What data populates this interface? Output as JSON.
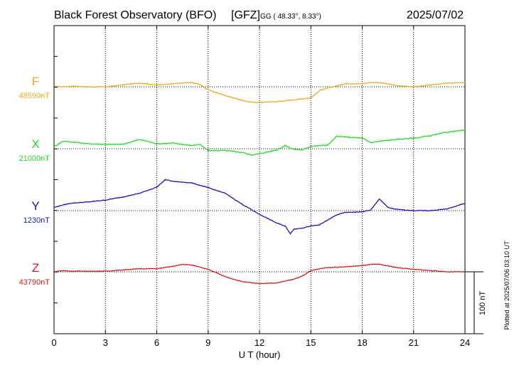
{
  "header": {
    "title": "Black Forest Observatory (BFO)",
    "org": "[GFZ]",
    "coords": "GG ( 48.33°,   8.33°)",
    "date": "2025/07/02"
  },
  "footer": {
    "plotted": "Plotted at 2025/07/06 03:10 UT"
  },
  "chart_data": {
    "type": "line",
    "xlabel": "U T (hour)",
    "xlim": [
      0,
      24
    ],
    "xticks": [
      0,
      3,
      6,
      9,
      12,
      15,
      18,
      21,
      24
    ],
    "scale_bar": {
      "label": "100 nT",
      "value_nT": 100
    },
    "grid": true,
    "series": [
      {
        "name": "F",
        "baseline_label": "48590nT",
        "baseline_nT": 48590,
        "color": "#f0a818",
        "x": [
          0,
          0.5,
          1,
          2,
          3,
          4,
          5,
          6,
          7,
          8,
          8.5,
          9,
          10,
          11,
          11.5,
          12,
          13,
          14,
          15,
          15.5,
          16,
          17,
          18,
          18.5,
          19,
          20,
          21,
          22,
          23,
          24
        ],
        "offset_nT": [
          1,
          0,
          1,
          0,
          0,
          3,
          6,
          3,
          5,
          7,
          4,
          -5,
          -14,
          -22,
          -25,
          -25,
          -24,
          -21,
          -18,
          -6,
          -2,
          5,
          5,
          7,
          7,
          2,
          0,
          3,
          6,
          7
        ]
      },
      {
        "name": "X",
        "baseline_label": "21000nT",
        "baseline_nT": 21000,
        "color": "#22dd22",
        "x": [
          0,
          0.5,
          1,
          2,
          3,
          4,
          5,
          6,
          7,
          8,
          8.5,
          9,
          10,
          11,
          11.5,
          12,
          13,
          13.5,
          14,
          14.5,
          15,
          15.5,
          16,
          16.5,
          17,
          17.5,
          18,
          18.5,
          19,
          20,
          21,
          22,
          23,
          24
        ],
        "offset_nT": [
          3,
          12,
          11,
          8,
          7,
          7,
          15,
          8,
          9,
          5,
          7,
          -3,
          -3,
          -6,
          -10,
          -8,
          -2,
          5,
          -1,
          -2,
          4,
          5,
          6,
          20,
          19,
          18,
          17,
          10,
          12,
          15,
          17,
          21,
          27,
          30
        ]
      },
      {
        "name": "Y",
        "baseline_label": "1230nT",
        "baseline_nT": 1230,
        "color": "#1414cc",
        "x": [
          0,
          0.5,
          1,
          2,
          3,
          4,
          5,
          6,
          6.5,
          7,
          8,
          9,
          10,
          11,
          12,
          13,
          13.5,
          13.8,
          14,
          14.5,
          15,
          15.5,
          16,
          16.5,
          17,
          18,
          18.5,
          19,
          19.5,
          20,
          21,
          22,
          23,
          24
        ],
        "offset_nT": [
          5,
          9,
          12,
          14,
          17,
          22,
          28,
          38,
          50,
          47,
          45,
          37,
          28,
          10,
          -6,
          -20,
          -25,
          -37,
          -30,
          -28,
          -25,
          -23,
          -15,
          -7,
          -3,
          -2,
          1,
          19,
          5,
          2,
          0,
          0,
          3,
          12
        ]
      },
      {
        "name": "Z",
        "baseline_label": "43790nT",
        "baseline_nT": 43790,
        "color": "#dd1818",
        "x": [
          0,
          0.5,
          1,
          2,
          3,
          4,
          5,
          6,
          7,
          7.5,
          8,
          8.5,
          9,
          10,
          11,
          12,
          13,
          14,
          14.5,
          15,
          15.5,
          16,
          17,
          18,
          18.5,
          19,
          20,
          21,
          22,
          23,
          24
        ],
        "offset_nT": [
          0,
          2,
          1,
          1,
          1,
          3,
          5,
          5,
          9,
          12,
          11,
          8,
          4,
          -8,
          -16,
          -19,
          -18,
          -12,
          -7,
          2,
          5,
          7,
          8,
          10,
          12,
          12,
          7,
          4,
          2,
          0,
          0
        ]
      }
    ]
  }
}
